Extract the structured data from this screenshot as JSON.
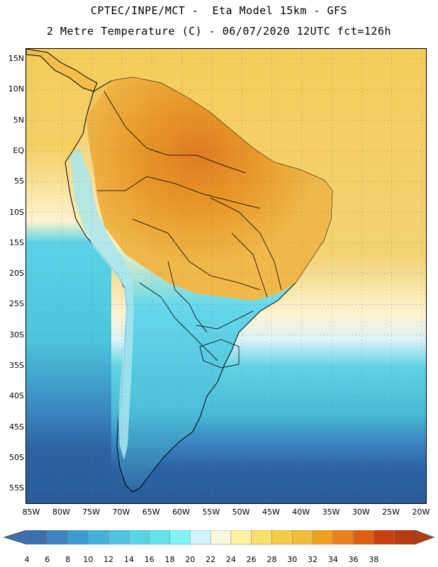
{
  "header": {
    "line1": "CPTEC/INPE/MCT -  Eta Model 15km - GFS",
    "line2": "2 Metre Temperature (C) - 06/07/2020 12UTC fct=126h"
  },
  "map": {
    "lat_labels": [
      "15N",
      "10N",
      "5N",
      "EQ",
      "5S",
      "10S",
      "15S",
      "20S",
      "25S",
      "30S",
      "35S",
      "40S",
      "45S",
      "50S",
      "55S"
    ],
    "lon_labels": [
      "85W",
      "80W",
      "75W",
      "70W",
      "65W",
      "60W",
      "55W",
      "50W",
      "45W",
      "40W",
      "35W",
      "30W",
      "25W",
      "20W"
    ],
    "colors": {
      "ocean_cold": "#2a5f9e",
      "ocean_mid": "#4cc8d8",
      "land_hot": "#e89a2a",
      "land_warm": "#f4c24a",
      "border": "#000000"
    }
  },
  "legend": {
    "values": [
      "4",
      "6",
      "8",
      "10",
      "12",
      "14",
      "16",
      "18",
      "20",
      "22",
      "24",
      "26",
      "28",
      "30",
      "32",
      "34",
      "36",
      "38"
    ],
    "colors": [
      "#3a6fb0",
      "#3a84c0",
      "#3b9bd0",
      "#45b1da",
      "#4fc4e0",
      "#5ad3e8",
      "#66e2ef",
      "#7ff3f6",
      "#d2f5fb",
      "#fdf7e0",
      "#fdf3a0",
      "#f8e06a",
      "#f3cd4a",
      "#f0bc3a",
      "#eda020",
      "#e8801e",
      "#df5e10",
      "#c94010",
      "#b83a10"
    ]
  }
}
